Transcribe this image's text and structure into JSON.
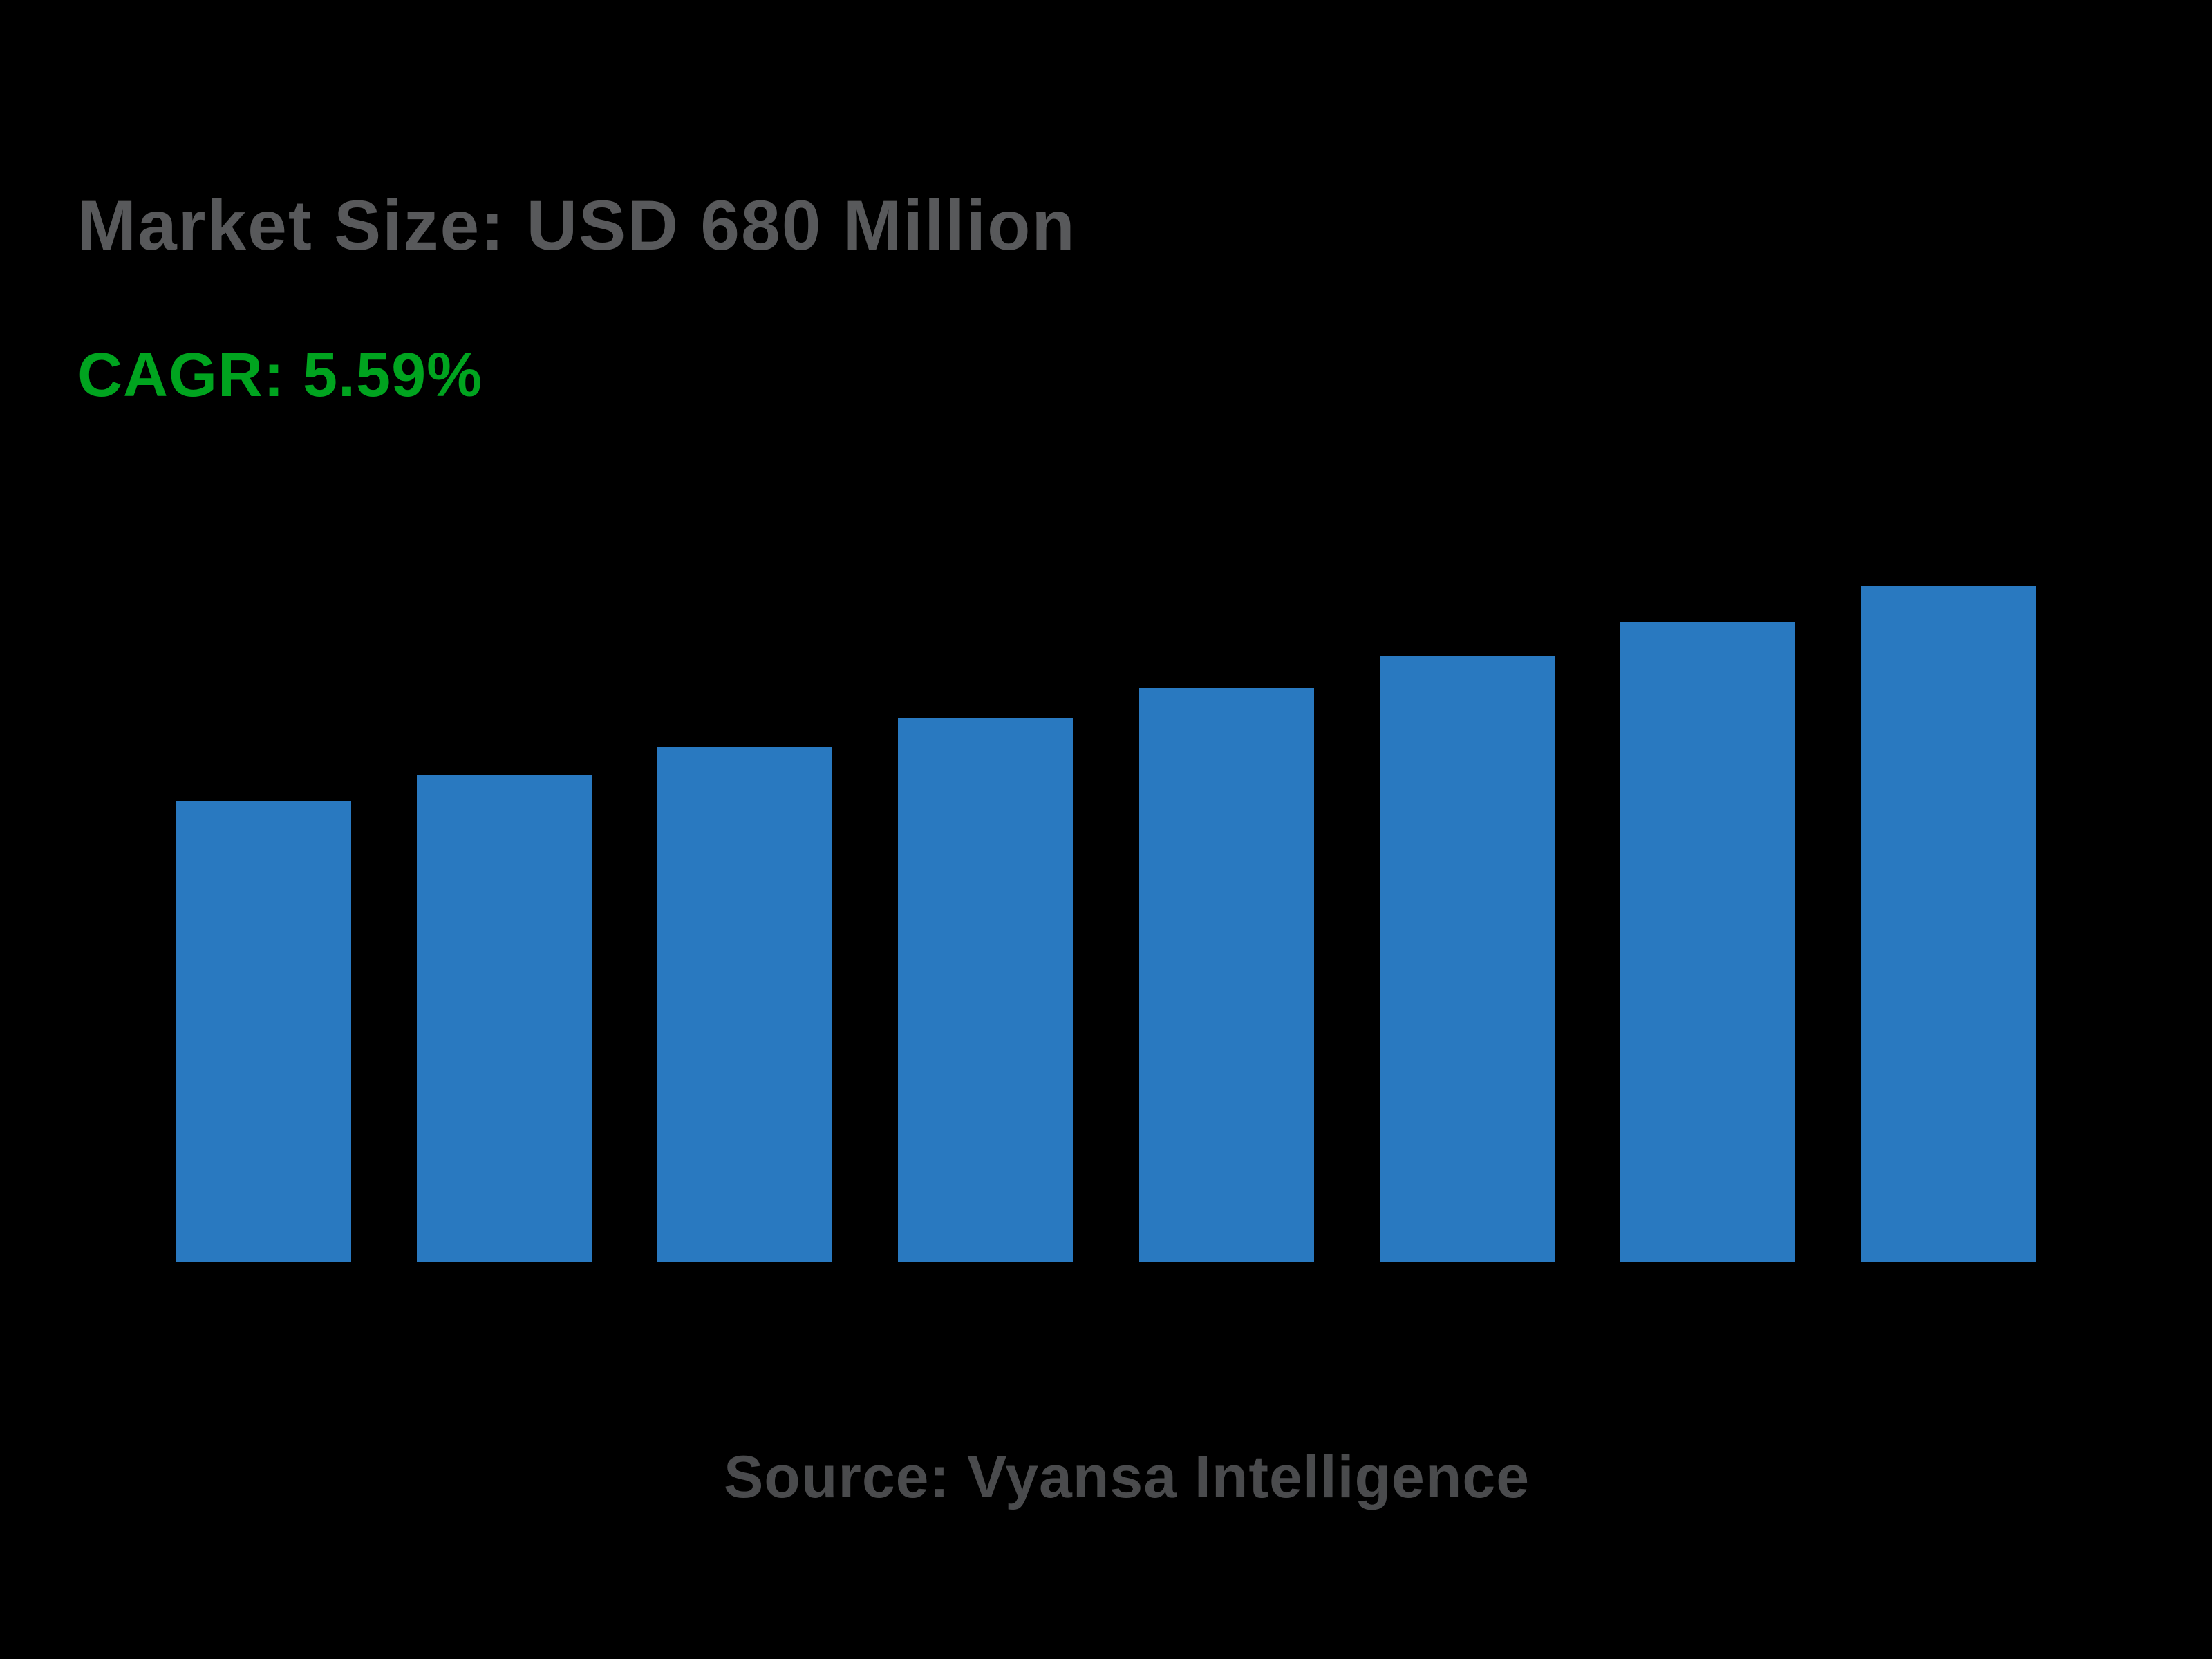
{
  "title": "Market Size: USD 680 Million",
  "subtitle": "CAGR: 5.59%",
  "source": "Source: Vyansa Intelligence",
  "colors": {
    "background": "#000000",
    "bar_blue": "#2979c0",
    "title_gray": "#58595b",
    "cagr_green": "#00a41f",
    "source_gray": "#4a4b4d"
  },
  "chart_data": {
    "type": "bar",
    "title": "Market Size: USD 680 Million",
    "subtitle": "CAGR: 5.59%",
    "source_note": "Source: Vyansa Intelligence",
    "categories": [
      "",
      "",
      "",
      "",
      "",
      "",
      "",
      ""
    ],
    "values": [
      464,
      490,
      518,
      547,
      577,
      610,
      644,
      680
    ],
    "value_unit": "USD Million (estimated, final bar = 680)",
    "xlabel": "",
    "ylabel": "",
    "ylim": [
      0,
      680
    ],
    "grid": false,
    "legend": false,
    "axes_visible": false,
    "bar_color": "#2979c0"
  }
}
